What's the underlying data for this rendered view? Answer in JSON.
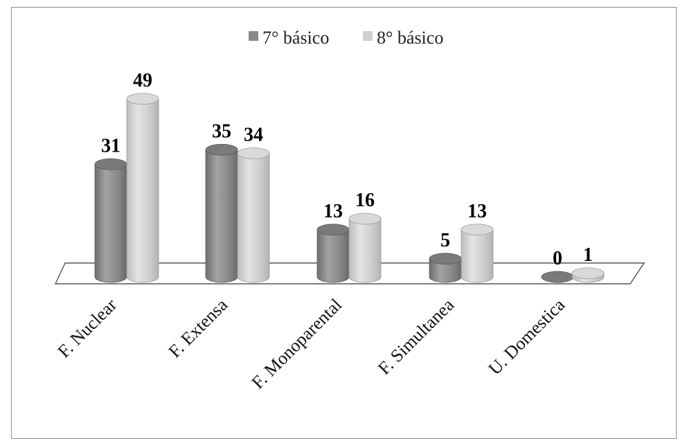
{
  "chart_data": {
    "type": "bar",
    "categories": [
      "F. Nuclear",
      "F. Extensa",
      "F. Monoparental",
      "F. Simultanea",
      "U. Domestica"
    ],
    "series": [
      {
        "name": "7° básico",
        "values": [
          31,
          35,
          13,
          5,
          0
        ],
        "color": "#8a8a8a"
      },
      {
        "name": "8° básico",
        "values": [
          49,
          34,
          16,
          13,
          1
        ],
        "color": "#cfcfcf"
      }
    ],
    "ylim": [
      0,
      49
    ],
    "grid": false,
    "legend": "top-center",
    "style": "3d-cylinder"
  }
}
